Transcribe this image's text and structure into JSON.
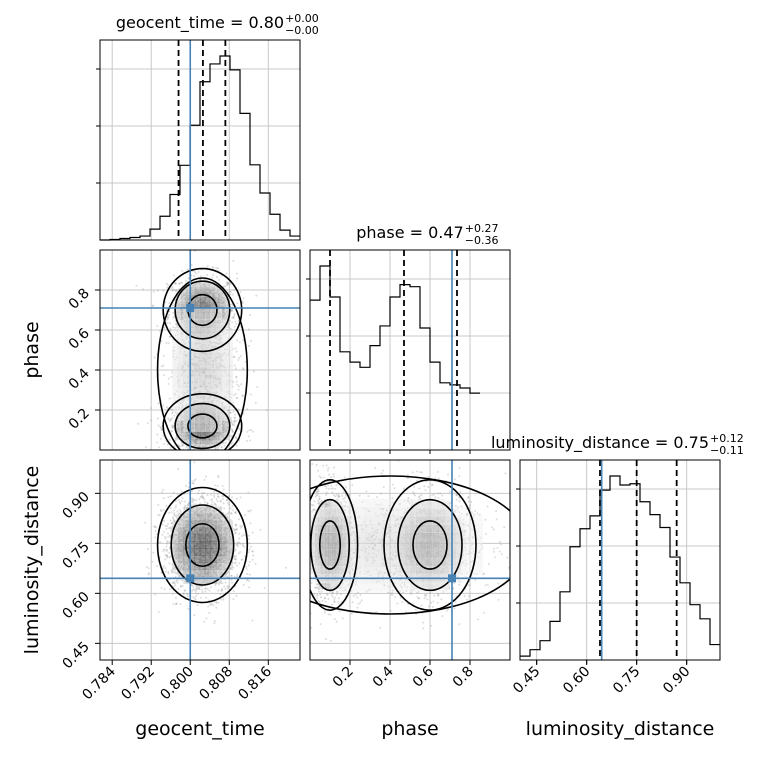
{
  "chart_data": {
    "type": "corner",
    "params": [
      "geocent_time",
      "phase",
      "luminosity_distance"
    ],
    "titles": [
      {
        "label": "geocent_time = 0.80",
        "sup": "+0.00",
        "sub": "−0.00"
      },
      {
        "label": "phase = 0.47",
        "sup": "+0.27",
        "sub": "−0.36"
      },
      {
        "label": "luminosity_distance = 0.75",
        "sup": "+0.12",
        "sub": "−0.11"
      }
    ],
    "truths": {
      "geocent_time": 0.8,
      "phase": 0.71,
      "luminosity_distance": 0.645
    },
    "quantiles": {
      "geocent_time": [
        0.7976,
        0.8026,
        0.8072
      ],
      "phase": [
        0.1,
        0.47,
        0.735
      ],
      "luminosity_distance": [
        0.64,
        0.75,
        0.87
      ]
    },
    "ranges": {
      "geocent_time": [
        0.7815,
        0.8225
      ],
      "phase": [
        0.0,
        1.0
      ],
      "luminosity_distance": [
        0.4,
        1.0
      ]
    },
    "ticks": {
      "geocent_time": [
        "0.784",
        "0.792",
        "0.800",
        "0.808",
        "0.816"
      ],
      "phase": [
        "0.2",
        "0.4",
        "0.6",
        "0.8"
      ],
      "luminosity_distance": [
        "0.45",
        "0.60",
        "0.75",
        "0.90"
      ]
    },
    "hist": {
      "geocent_time": {
        "x0": 0.7815,
        "dx": 0.00205,
        "counts": [
          0,
          1,
          3,
          5,
          8,
          22,
          48,
          92,
          151,
          232,
          320,
          356,
          372,
          344,
          256,
          152,
          95,
          52,
          20,
          8
        ]
      },
      "phase": {
        "x0": 0.0,
        "dx": 0.05,
        "counts": [
          145,
          178,
          148,
          95,
          85,
          80,
          101,
          120,
          148,
          160,
          158,
          118,
          85,
          65,
          63,
          60,
          55
        ]
      },
      "luminosity_distance": {
        "x0": 0.4,
        "dx": 0.03,
        "counts": [
          3,
          8,
          15,
          30,
          53,
          88,
          102,
          112,
          132,
          143,
          136,
          137,
          123,
          113,
          103,
          80,
          60,
          43,
          32,
          12
        ]
      }
    },
    "grid": true,
    "axis_labels": {
      "geocent_time": "geocent_time",
      "phase": "phase",
      "luminosity_distance": "luminosity_distance"
    },
    "colors": {
      "truth": "#4682b4",
      "hist": "#000000",
      "contour": "#000000",
      "points": "#9a9a9a",
      "grid": "#c8c8c8"
    }
  }
}
